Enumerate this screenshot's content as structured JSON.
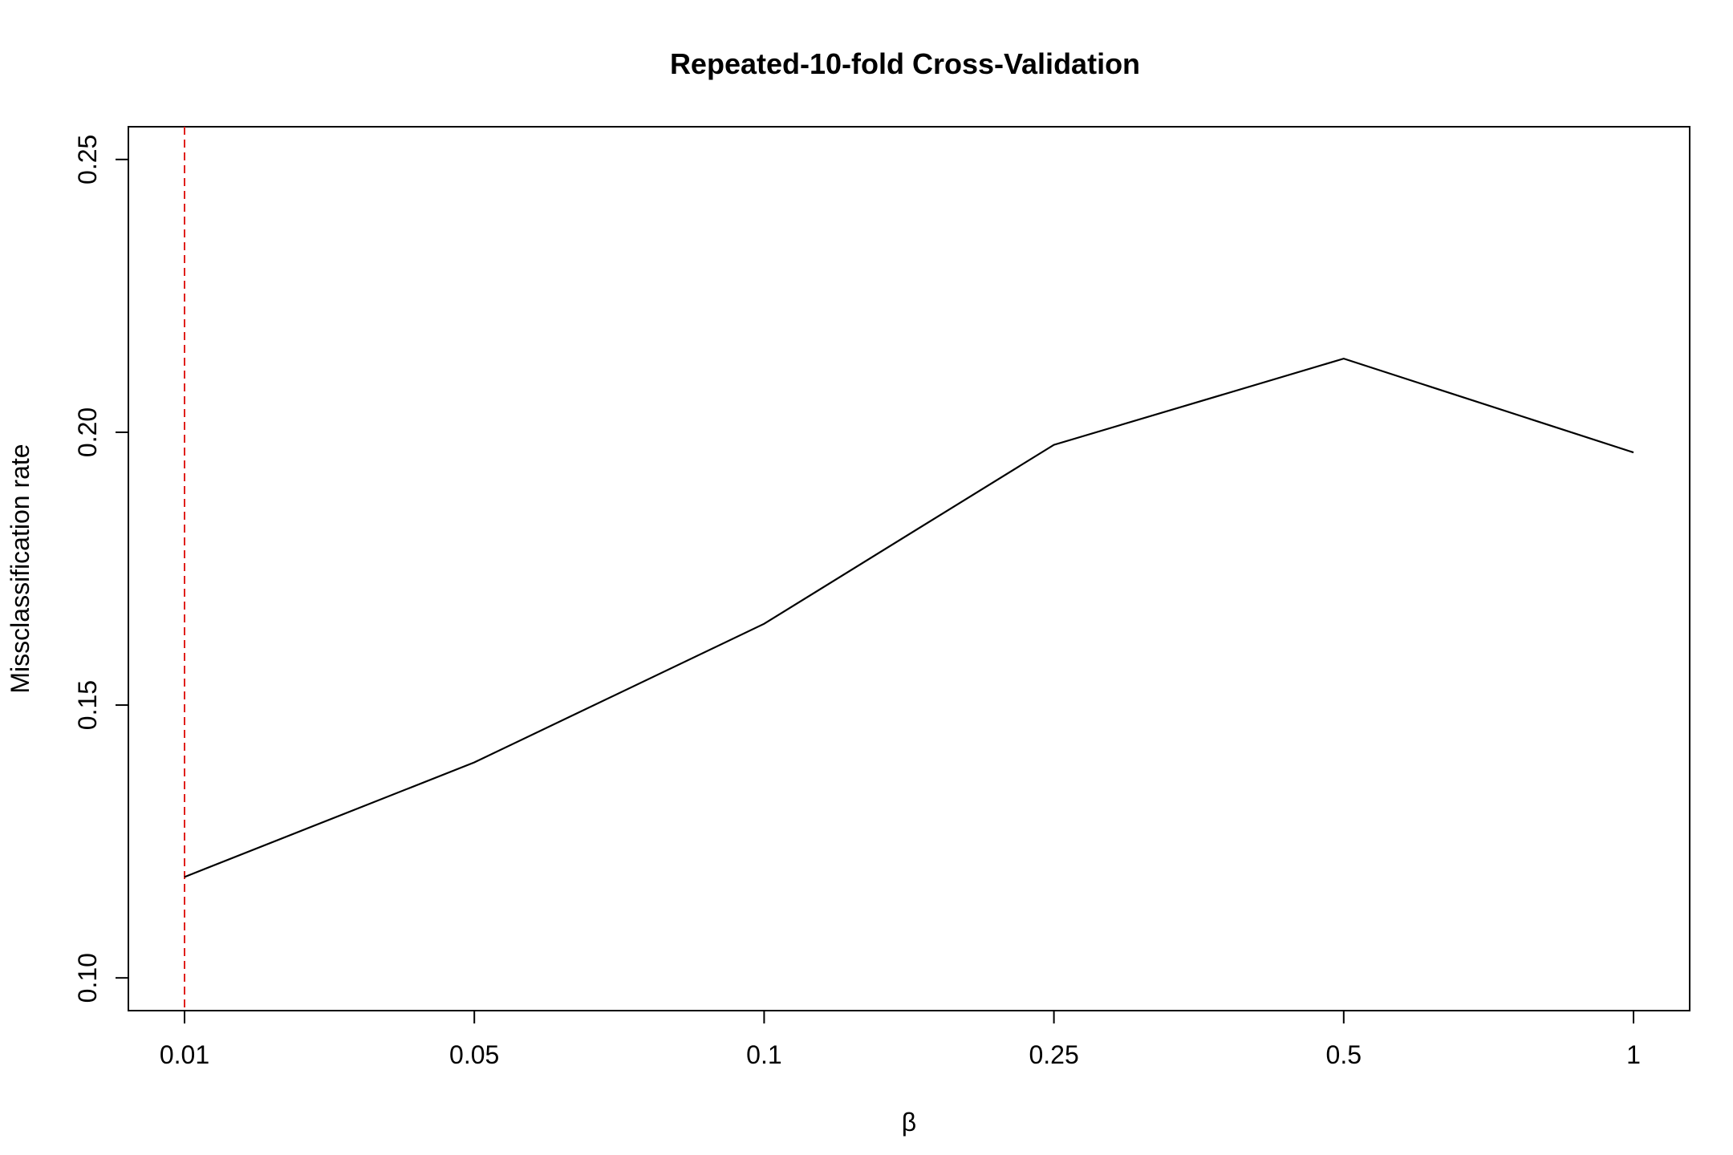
{
  "chart_data": {
    "type": "line",
    "title": "Repeated-10-fold Cross-Validation",
    "xlabel": "β",
    "ylabel": "Missclassification rate",
    "categories": [
      "0.01",
      "0.05",
      "0.1",
      "0.25",
      "0.5",
      "1"
    ],
    "series": [
      {
        "values": [
          0.1185,
          0.1395,
          0.1649,
          0.1977,
          0.2135,
          0.1963
        ],
        "color": "#000000"
      }
    ],
    "yticks": [
      "0.10",
      "0.15",
      "0.20",
      "0.25"
    ],
    "ylim": [
      0.094,
      0.256
    ],
    "grid": false,
    "legend": "none",
    "reference_line": {
      "orientation": "vertical",
      "at_category": "0.01",
      "style": "dashed",
      "color": "#e0201b"
    }
  }
}
